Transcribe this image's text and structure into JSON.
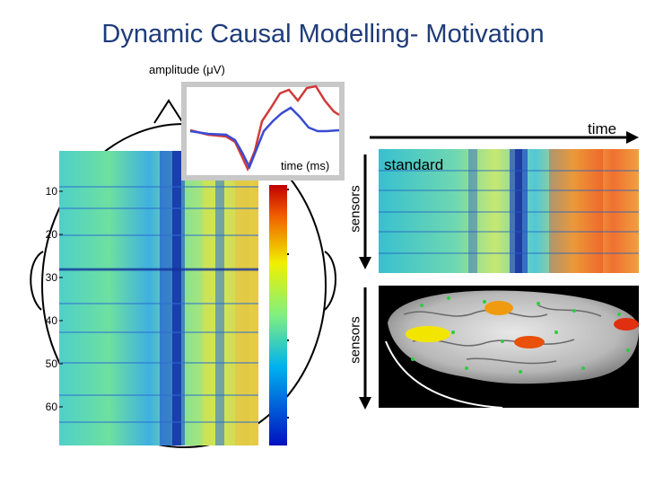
{
  "title": "Dynamic Causal Modelling- Motivation",
  "labels": {
    "amplitude": "amplitude (μV)",
    "time": "time",
    "time_ms": "time (ms)",
    "standard": "standard",
    "sensors_top": "sensors",
    "sensors_bottom": "sensors"
  },
  "channel_ticks": [
    "10",
    "20",
    "30",
    "40",
    "50",
    "60"
  ],
  "colors": {
    "title": "#1f3c7a",
    "erp_red": "#d23a3a",
    "erp_blue": "#3a4bd2",
    "source_yellow": "#f2e600",
    "source_orange": "#f09a10",
    "source_red": "#e03010"
  }
}
